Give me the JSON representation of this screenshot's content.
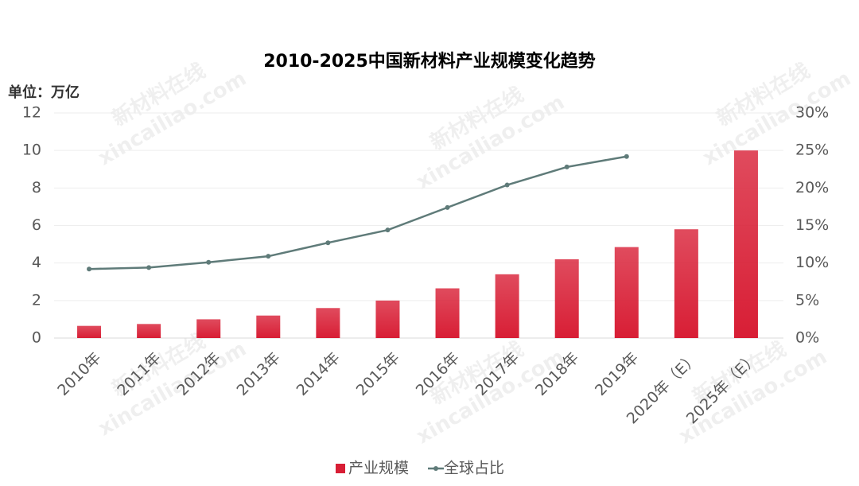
{
  "chart_data": {
    "type": "bar-line",
    "title": "2010-2025中国新材料产业规模变化趋势",
    "y_label": "单位：万亿",
    "watermark": [
      "新材料在线",
      "xincailiao.com"
    ],
    "categories": [
      "2010年",
      "2011年",
      "2012年",
      "2013年",
      "2014年",
      "2015年",
      "2016年",
      "2017年",
      "2018年",
      "2019年",
      "2020年（E）",
      "2025年（E）"
    ],
    "series": [
      {
        "name": "产业规模",
        "type": "bar",
        "color": "#d81e35",
        "values": [
          0.65,
          0.75,
          1.0,
          1.2,
          1.6,
          2.0,
          2.65,
          3.4,
          4.2,
          4.85,
          5.8,
          10
        ]
      },
      {
        "name": "全球占比",
        "type": "line",
        "axis": "y2",
        "color": "#5f7b79",
        "values": [
          9.2,
          9.4,
          10.1,
          10.9,
          12.7,
          14.4,
          17.4,
          20.4,
          22.8,
          24.2,
          null,
          null
        ]
      }
    ],
    "ylim": [
      0,
      12
    ],
    "yticks": [
      0,
      2,
      4,
      6,
      8,
      10,
      12
    ],
    "y2lim": [
      0,
      30
    ],
    "y2ticks": [
      {
        "value": 0,
        "label": "0%"
      },
      {
        "value": 5,
        "label": "5%"
      },
      {
        "value": 10,
        "label": "10%"
      },
      {
        "value": 15,
        "label": "15%"
      },
      {
        "value": 20,
        "label": "20%"
      },
      {
        "value": 25,
        "label": "25%"
      },
      {
        "value": 30,
        "label": "30%"
      }
    ],
    "grid": true,
    "legend": "bottom"
  }
}
